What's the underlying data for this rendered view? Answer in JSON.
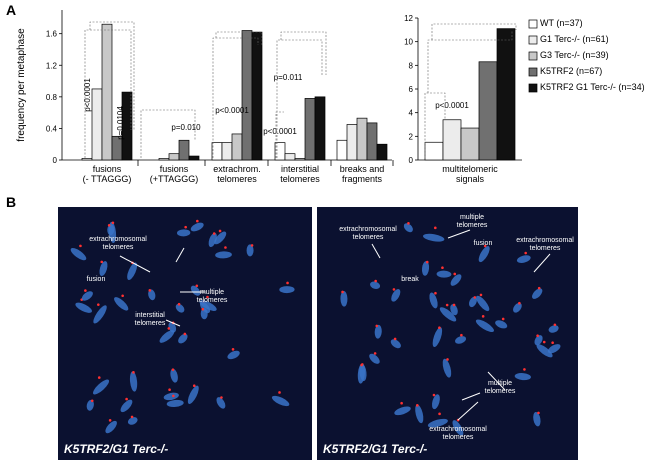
{
  "panel_labels": [
    "A",
    "B"
  ],
  "chart_data": [
    {
      "type": "bar",
      "ylabel": "frequency per metaphase",
      "categories": [
        "fusions\n(- TTAGGG)",
        "fusions\n(+TTAGGG)",
        "extrachrom.\ntelomeres",
        "interstitial\ntelomeres",
        "breaks and\nfragments"
      ],
      "series": [
        {
          "color": "#ffffff",
          "values": [
            0.02,
            0.0,
            0.22,
            0.22,
            0.25
          ]
        },
        {
          "color": "#ececec",
          "values": [
            0.9,
            0.02,
            0.22,
            0.08,
            0.45
          ]
        },
        {
          "color": "#c8c8c8",
          "values": [
            1.72,
            0.08,
            0.33,
            0.02,
            0.53
          ]
        },
        {
          "color": "#707070",
          "values": [
            0.3,
            0.25,
            1.64,
            0.78,
            0.47
          ]
        },
        {
          "color": "#111111",
          "values": [
            0.86,
            0.05,
            1.62,
            0.8,
            0.2
          ]
        }
      ],
      "ylim": [
        0,
        1.9
      ],
      "yticks": [
        0,
        0.4,
        0.8,
        1.2,
        1.6
      ],
      "annotations": [
        "p<0.0001",
        "p=0.0104",
        "p=0.010",
        "p<0.0001",
        "p=0.011",
        "p<0.0001"
      ]
    },
    {
      "type": "bar",
      "categories": [
        "multitelomeric\nsignals"
      ],
      "series": [
        {
          "name": "WT (n=37)",
          "color": "#ffffff",
          "values": [
            1.5
          ]
        },
        {
          "name": "G1 Terc-/- (n=61)",
          "color": "#ececec",
          "values": [
            3.4
          ]
        },
        {
          "name": "G3 Terc-/- (n=39)",
          "color": "#c8c8c8",
          "values": [
            2.7
          ]
        },
        {
          "name": "K5TRF2 (n=67)",
          "color": "#707070",
          "values": [
            8.3
          ]
        },
        {
          "name": "K5TRF2 G1 Terc-/- (n=34)",
          "color": "#111111",
          "values": [
            11.1
          ]
        }
      ],
      "ylim": [
        0,
        12
      ],
      "yticks": [
        0,
        2,
        4,
        6,
        8,
        10,
        12
      ],
      "annotations": [
        "p<0.0001"
      ]
    }
  ],
  "micrographs": [
    {
      "caption": "K5TRF2/G1 Terc-/-",
      "labels": [
        "extrachromosomal\ntelomeres",
        "fusion",
        "multiple\ntelomeres",
        "interstitial\ntelomeres"
      ]
    },
    {
      "caption": "K5TRF2/G1 Terc-/-",
      "labels": [
        "multiple\ntelomeres",
        "extrachromosomal\ntelomeres",
        "fusion",
        "extrachromosomal\ntelomeres",
        "break",
        "multiple\ntelomeres",
        "extrachromosomal\ntelomeres"
      ]
    }
  ]
}
